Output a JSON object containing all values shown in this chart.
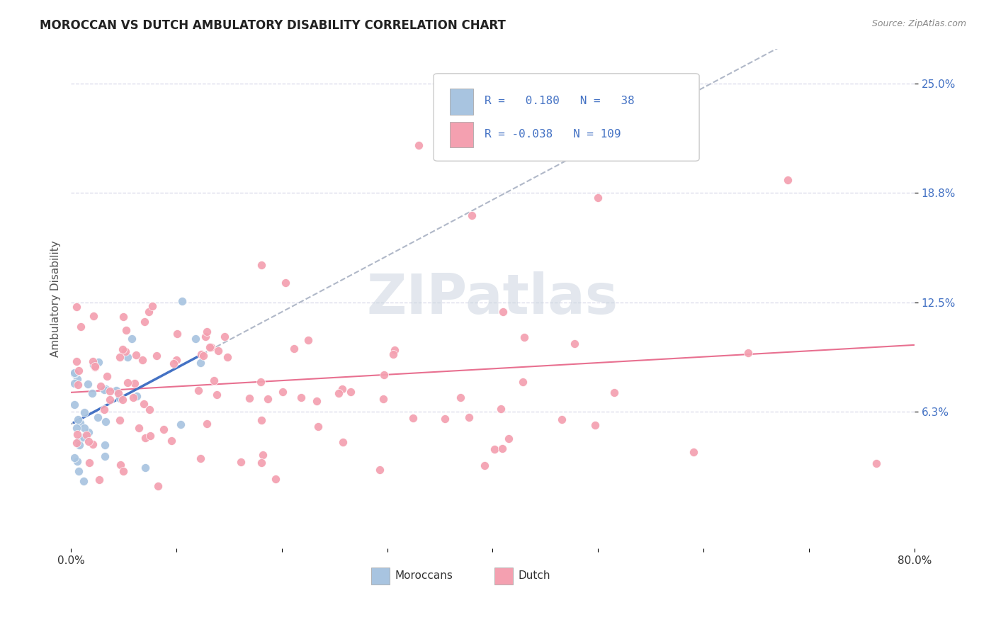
{
  "title": "MOROCCAN VS DUTCH AMBULATORY DISABILITY CORRELATION CHART",
  "source": "Source: ZipAtlas.com",
  "ylabel": "Ambulatory Disability",
  "ytick_labels": [
    "6.3%",
    "12.5%",
    "18.8%",
    "25.0%"
  ],
  "ytick_values": [
    0.063,
    0.125,
    0.188,
    0.25
  ],
  "xlim": [
    0.0,
    0.8
  ],
  "ylim": [
    -0.015,
    0.27
  ],
  "moroccan_color": "#a8c4e0",
  "dutch_color": "#f4a0b0",
  "moroccan_line_color": "#4472c4",
  "dutch_line_color": "#e87090",
  "trend_line_color": "#b0b8c8",
  "R_moroccan": 0.18,
  "N_moroccan": 38,
  "R_dutch": -0.038,
  "N_dutch": 109,
  "watermark": "ZIPatlas",
  "background_color": "#ffffff",
  "grid_color": "#d8d8e8"
}
